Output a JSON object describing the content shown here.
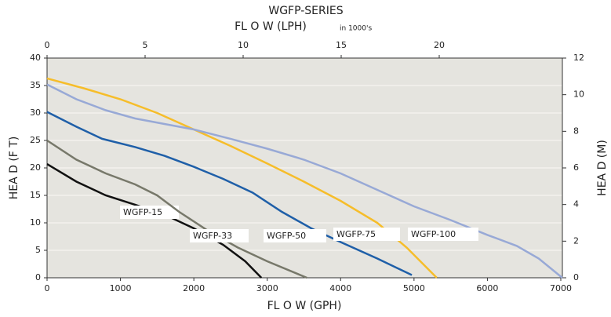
{
  "chart_data": {
    "type": "line",
    "title": "WGFP-SERIES",
    "x2_label": "FL O W (LPH)",
    "x2_note": "in 1000's",
    "x_label": "FL O W (GPH)",
    "y_label": "HEA D (F T)",
    "y2_label": "HEA D (M)",
    "xlim": [
      0,
      7000
    ],
    "xticks": [
      0,
      1000,
      2000,
      3000,
      4000,
      5000,
      6000,
      7000
    ],
    "x2lim": [
      0,
      26.2
    ],
    "x2ticks": [
      0,
      5,
      10,
      15,
      20
    ],
    "ylim": [
      0,
      40
    ],
    "yticks": [
      0,
      5,
      10,
      15,
      20,
      25,
      30,
      35,
      40
    ],
    "y2lim": [
      0,
      12
    ],
    "y2ticks": [
      0,
      2,
      4,
      6,
      8,
      10,
      12
    ],
    "grid": true,
    "series": [
      {
        "name": "WGFP-15",
        "color": "#111111",
        "x": [
          0,
          400,
          800,
          1200,
          1600,
          2000,
          2400,
          2700,
          2920
        ],
        "values": [
          20.7,
          17.5,
          15,
          13.3,
          11.5,
          9,
          6,
          3,
          0
        ]
      },
      {
        "name": "WGFP-33",
        "color": "#77786a",
        "x": [
          0,
          400,
          800,
          1200,
          1500,
          1800,
          2200,
          2600,
          3000,
          3540
        ],
        "values": [
          25,
          21.5,
          19,
          17,
          15,
          12,
          8.5,
          5.5,
          3,
          0
        ]
      },
      {
        "name": "WGFP-50",
        "color": "#1f5fa8",
        "x": [
          0,
          400,
          750,
          1200,
          1600,
          2000,
          2400,
          2800,
          3200,
          3600,
          4000,
          4500,
          4970
        ],
        "values": [
          30.2,
          27.5,
          25.3,
          23.8,
          22.2,
          20.2,
          18,
          15.5,
          12,
          9,
          6.5,
          3.5,
          0.5
        ]
      },
      {
        "name": "WGFP-75",
        "color": "#f6bd2a",
        "x": [
          0,
          500,
          1000,
          1500,
          2000,
          2500,
          3000,
          3500,
          4000,
          4500,
          4900,
          5310
        ],
        "values": [
          36.3,
          34.5,
          32.5,
          30,
          27,
          24,
          20.8,
          17.5,
          14,
          10,
          5.5,
          0
        ]
      },
      {
        "name": "WGFP-100",
        "color": "#98a9d6",
        "x": [
          0,
          400,
          800,
          1200,
          1600,
          2000,
          2500,
          3000,
          3500,
          4000,
          4500,
          5000,
          5500,
          6000,
          6400,
          6700,
          7020
        ],
        "values": [
          35.2,
          32.5,
          30.5,
          29,
          28,
          27,
          25.3,
          23.5,
          21.5,
          19,
          16,
          13,
          10.5,
          7.8,
          5.8,
          3.5,
          0
        ]
      }
    ]
  }
}
